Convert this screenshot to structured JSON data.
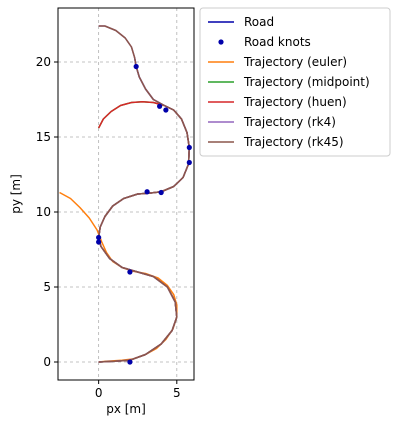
{
  "chart_data": {
    "type": "line",
    "title": "",
    "xlabel": "px [m]",
    "ylabel": "py [m]",
    "xlim": [
      -2.6,
      6.1
    ],
    "ylim": [
      -1.2,
      23.6
    ],
    "grid": true,
    "grid_style": "dashed",
    "legend_position": "outside-right-top",
    "x_ticks": [
      0,
      5
    ],
    "x_tick_labels": [
      "0",
      "5"
    ],
    "y_ticks": [
      0,
      5,
      10,
      15,
      20
    ],
    "y_tick_labels": [
      "0",
      "5",
      "10",
      "15",
      "20"
    ],
    "road": {
      "name": "Road",
      "color": "#0000aa",
      "points": [
        [
          0,
          0
        ],
        [
          1,
          0.05
        ],
        [
          2,
          0.12
        ],
        [
          3,
          0.5
        ],
        [
          4,
          1.2
        ],
        [
          4.7,
          2.1
        ],
        [
          5,
          3
        ],
        [
          4.9,
          4
        ],
        [
          4.4,
          5
        ],
        [
          3.5,
          5.7
        ],
        [
          2.5,
          6
        ],
        [
          1.5,
          6.3
        ],
        [
          0.7,
          6.9
        ],
        [
          0.15,
          7.7
        ],
        [
          0,
          8.3
        ],
        [
          0.1,
          9
        ],
        [
          0.4,
          9.7
        ],
        [
          0.9,
          10.4
        ],
        [
          1.6,
          10.9
        ],
        [
          2.5,
          11.2
        ],
        [
          3.2,
          11.25
        ],
        [
          4,
          11.35
        ],
        [
          4.8,
          11.7
        ],
        [
          5.4,
          12.3
        ],
        [
          5.75,
          13.2
        ],
        [
          5.8,
          14.3
        ],
        [
          5.65,
          15.3
        ],
        [
          5.3,
          16.2
        ],
        [
          4.8,
          16.8
        ],
        [
          4.2,
          17.1
        ],
        [
          3.5,
          17.5
        ],
        [
          3,
          18.2
        ],
        [
          2.6,
          19
        ],
        [
          2.4,
          19.7
        ],
        [
          2.3,
          20.3
        ]
      ],
      "knots_name": "Road knots",
      "knots_color": "#0000aa",
      "knots": [
        [
          2.4,
          19.7
        ],
        [
          3.9,
          17.05
        ],
        [
          4.3,
          16.8
        ],
        [
          5.8,
          14.3
        ],
        [
          5.8,
          13.3
        ],
        [
          4,
          11.3
        ],
        [
          3.1,
          11.35
        ],
        [
          0,
          8
        ],
        [
          0,
          8.3
        ],
        [
          2,
          6
        ],
        [
          2,
          0
        ]
      ]
    },
    "series": [
      {
        "name": "Trajectory (euler)",
        "color": "#ff7f0e",
        "points": [
          [
            0,
            0
          ],
          [
            0.5,
            0.05
          ],
          [
            1,
            0.08
          ],
          [
            1.5,
            0.12
          ],
          [
            2.2,
            0.2
          ],
          [
            3,
            0.5
          ],
          [
            3.7,
            0.9
          ],
          [
            4.3,
            1.5
          ],
          [
            4.75,
            2.2
          ],
          [
            5,
            3
          ],
          [
            5,
            3.8
          ],
          [
            4.8,
            4.5
          ],
          [
            4.4,
            5.1
          ],
          [
            3.8,
            5.6
          ],
          [
            3,
            5.9
          ],
          [
            2.2,
            6.05
          ],
          [
            1.5,
            6.3
          ],
          [
            0.9,
            6.7
          ],
          [
            0.5,
            7.3
          ],
          [
            0.2,
            8
          ],
          [
            -0.1,
            8.8
          ],
          [
            -0.6,
            9.6
          ],
          [
            -1.2,
            10.3
          ],
          [
            -1.8,
            10.9
          ],
          [
            -2.5,
            11.3
          ]
        ]
      },
      {
        "name": "Trajectory (midpoint)",
        "color": "#2ca02c",
        "points": [
          [
            0,
            0
          ],
          [
            1,
            0.05
          ],
          [
            2,
            0.12
          ],
          [
            3,
            0.5
          ],
          [
            4,
            1.2
          ],
          [
            4.7,
            2.1
          ],
          [
            5,
            3
          ],
          [
            4.9,
            4
          ],
          [
            4.4,
            5
          ],
          [
            3.5,
            5.7
          ],
          [
            2.5,
            6
          ],
          [
            1.5,
            6.3
          ],
          [
            0.7,
            6.9
          ],
          [
            0.15,
            7.7
          ],
          [
            0,
            8.3
          ],
          [
            0.1,
            9
          ],
          [
            0.4,
            9.7
          ],
          [
            0.9,
            10.4
          ],
          [
            1.6,
            10.9
          ],
          [
            2.5,
            11.2
          ],
          [
            3.2,
            11.25
          ],
          [
            4,
            11.35
          ],
          [
            4.8,
            11.7
          ],
          [
            5.4,
            12.3
          ],
          [
            5.75,
            13.2
          ],
          [
            5.8,
            14.3
          ],
          [
            5.65,
            15.3
          ],
          [
            5.3,
            16.2
          ],
          [
            4.8,
            16.8
          ],
          [
            4.2,
            17.1
          ],
          [
            3.5,
            17.3
          ],
          [
            2.8,
            17.35
          ],
          [
            2.1,
            17.3
          ],
          [
            1.4,
            17.1
          ],
          [
            0.8,
            16.7
          ],
          [
            0.3,
            16.2
          ],
          [
            0,
            15.6
          ]
        ]
      },
      {
        "name": "Trajectory (huen)",
        "color": "#d62728",
        "points": [
          [
            0,
            0
          ],
          [
            1,
            0.05
          ],
          [
            2,
            0.12
          ],
          [
            3,
            0.5
          ],
          [
            4,
            1.2
          ],
          [
            4.7,
            2.1
          ],
          [
            5,
            3
          ],
          [
            4.9,
            4
          ],
          [
            4.4,
            5
          ],
          [
            3.5,
            5.7
          ],
          [
            2.5,
            6
          ],
          [
            1.5,
            6.3
          ],
          [
            0.7,
            6.9
          ],
          [
            0.15,
            7.7
          ],
          [
            0,
            8.3
          ],
          [
            0.1,
            9
          ],
          [
            0.4,
            9.7
          ],
          [
            0.9,
            10.4
          ],
          [
            1.6,
            10.9
          ],
          [
            2.5,
            11.2
          ],
          [
            3.2,
            11.25
          ],
          [
            4,
            11.35
          ],
          [
            4.8,
            11.7
          ],
          [
            5.4,
            12.3
          ],
          [
            5.75,
            13.2
          ],
          [
            5.8,
            14.3
          ],
          [
            5.65,
            15.3
          ],
          [
            5.3,
            16.2
          ],
          [
            4.8,
            16.8
          ],
          [
            4.2,
            17.1
          ],
          [
            3.5,
            17.3
          ],
          [
            2.8,
            17.35
          ],
          [
            2.1,
            17.3
          ],
          [
            1.4,
            17.1
          ],
          [
            0.8,
            16.7
          ],
          [
            0.3,
            16.2
          ],
          [
            0,
            15.6
          ]
        ]
      },
      {
        "name": "Trajectory (rk4)",
        "color": "#9467bd",
        "points": [
          [
            0,
            0
          ],
          [
            1,
            0.05
          ],
          [
            2,
            0.12
          ],
          [
            3,
            0.5
          ],
          [
            4,
            1.2
          ],
          [
            4.7,
            2.1
          ],
          [
            5,
            3
          ],
          [
            4.9,
            4
          ],
          [
            4.4,
            5
          ],
          [
            3.5,
            5.7
          ],
          [
            2.5,
            6
          ],
          [
            1.5,
            6.3
          ],
          [
            0.7,
            6.9
          ],
          [
            0.15,
            7.7
          ],
          [
            0,
            8.3
          ],
          [
            0.1,
            9
          ],
          [
            0.4,
            9.7
          ],
          [
            0.9,
            10.4
          ],
          [
            1.6,
            10.9
          ],
          [
            2.5,
            11.2
          ],
          [
            3.2,
            11.25
          ],
          [
            4,
            11.35
          ],
          [
            4.8,
            11.7
          ],
          [
            5.4,
            12.3
          ],
          [
            5.75,
            13.2
          ],
          [
            5.8,
            14.3
          ],
          [
            5.65,
            15.3
          ],
          [
            5.3,
            16.2
          ],
          [
            4.8,
            16.8
          ],
          [
            4.2,
            17.1
          ],
          [
            3.5,
            17.5
          ],
          [
            3,
            18.2
          ],
          [
            2.6,
            19
          ],
          [
            2.4,
            19.7
          ],
          [
            2.3,
            20.3
          ],
          [
            2.1,
            21
          ],
          [
            1.7,
            21.6
          ],
          [
            1.1,
            22.1
          ],
          [
            0.4,
            22.4
          ],
          [
            0,
            22.4
          ]
        ]
      },
      {
        "name": "Trajectory (rk45)",
        "color": "#8c564b",
        "points": [
          [
            0,
            0
          ],
          [
            1,
            0.05
          ],
          [
            2,
            0.12
          ],
          [
            3,
            0.5
          ],
          [
            4,
            1.2
          ],
          [
            4.7,
            2.1
          ],
          [
            5,
            3
          ],
          [
            4.9,
            4
          ],
          [
            4.4,
            5
          ],
          [
            3.5,
            5.7
          ],
          [
            2.5,
            6
          ],
          [
            1.5,
            6.3
          ],
          [
            0.7,
            6.9
          ],
          [
            0.15,
            7.7
          ],
          [
            0,
            8.3
          ],
          [
            0.1,
            9
          ],
          [
            0.4,
            9.7
          ],
          [
            0.9,
            10.4
          ],
          [
            1.6,
            10.9
          ],
          [
            2.5,
            11.2
          ],
          [
            3.2,
            11.25
          ],
          [
            4,
            11.35
          ],
          [
            4.8,
            11.7
          ],
          [
            5.4,
            12.3
          ],
          [
            5.75,
            13.2
          ],
          [
            5.8,
            14.3
          ],
          [
            5.65,
            15.3
          ],
          [
            5.3,
            16.2
          ],
          [
            4.8,
            16.8
          ],
          [
            4.2,
            17.1
          ],
          [
            3.5,
            17.5
          ],
          [
            3,
            18.2
          ],
          [
            2.6,
            19
          ],
          [
            2.4,
            19.7
          ],
          [
            2.3,
            20.3
          ],
          [
            2.1,
            21
          ],
          [
            1.7,
            21.6
          ],
          [
            1.1,
            22.1
          ],
          [
            0.4,
            22.4
          ],
          [
            0,
            22.4
          ]
        ]
      }
    ],
    "legend": [
      {
        "label": "Road",
        "kind": "line",
        "color": "#0000aa"
      },
      {
        "label": "Road knots",
        "kind": "marker",
        "color": "#0000aa"
      },
      {
        "label": "Trajectory (euler)",
        "kind": "line",
        "color": "#ff7f0e"
      },
      {
        "label": "Trajectory (midpoint)",
        "kind": "line",
        "color": "#2ca02c"
      },
      {
        "label": "Trajectory (huen)",
        "kind": "line",
        "color": "#d62728"
      },
      {
        "label": "Trajectory (rk4)",
        "kind": "line",
        "color": "#9467bd"
      },
      {
        "label": "Trajectory (rk45)",
        "kind": "line",
        "color": "#8c564b"
      }
    ]
  }
}
